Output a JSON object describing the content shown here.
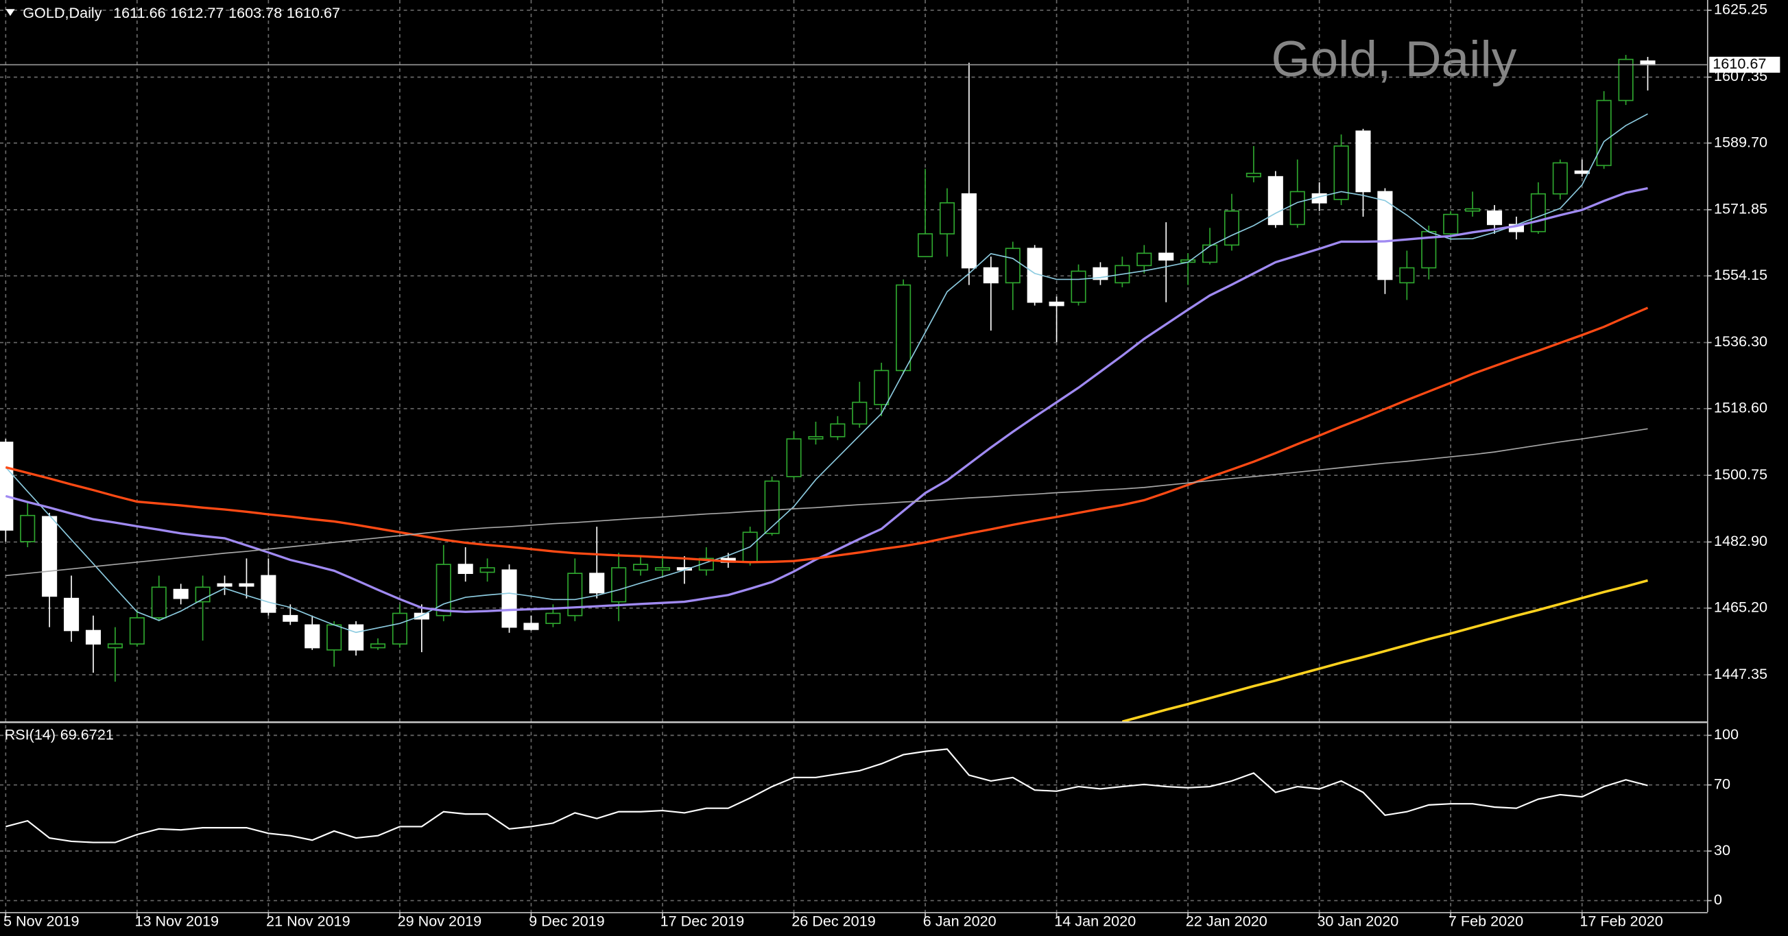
{
  "chart_data": [
    {
      "type": "candlestick",
      "title": "Gold, Daily",
      "symbol": "GOLD,Daily",
      "categories": [
        "5 Nov 2019",
        null,
        null,
        null,
        null,
        null,
        "13 Nov 2019",
        null,
        null,
        null,
        null,
        null,
        "21 Nov 2019",
        null,
        null,
        null,
        null,
        null,
        "29 Nov 2019",
        null,
        null,
        null,
        null,
        null,
        "9 Dec 2019",
        null,
        null,
        null,
        null,
        null,
        "17 Dec 2019",
        null,
        null,
        null,
        null,
        null,
        "26 Dec 2019",
        null,
        null,
        null,
        null,
        null,
        "6 Jan 2020",
        null,
        null,
        null,
        null,
        null,
        "14 Jan 2020",
        null,
        null,
        null,
        null,
        null,
        "22 Jan 2020",
        null,
        null,
        null,
        null,
        null,
        "30 Jan 2020",
        null,
        null,
        null,
        null,
        null,
        "7 Feb 2020",
        null,
        null,
        null,
        null,
        null,
        "17 Feb 2020",
        null,
        null,
        null
      ],
      "open": [
        1509.6,
        1483.0,
        1489.7,
        1467.8,
        1459.2,
        1454.6,
        1455.6,
        1462.6,
        1470.2,
        1466.9,
        1471.7,
        1471.7,
        1473.9,
        1463.2,
        1460.7,
        1454.0,
        1460.7,
        1454.6,
        1455.6,
        1463.8,
        1463.2,
        1476.9,
        1474.8,
        1475.4,
        1461.1,
        1461.1,
        1463.2,
        1474.5,
        1466.9,
        1475.4,
        1475.4,
        1476.0,
        1475.4,
        1478.5,
        1477.5,
        1485.2,
        1500.4,
        1510.5,
        1511.1,
        1514.5,
        1519.7,
        1528.8,
        1559.3,
        1565.4,
        1576.1,
        1556.3,
        1552.3,
        1561.5,
        1547.1,
        1547.1,
        1556.3,
        1552.3,
        1556.9,
        1560.2,
        1557.8,
        1557.8,
        1562.4,
        1580.7,
        1580.7,
        1567.9,
        1576.1,
        1574.6,
        1592.9,
        1576.7,
        1552.3,
        1556.3,
        1565.4,
        1571.5,
        1571.5,
        1567.9,
        1566.0,
        1576.1,
        1582.2,
        1583.7,
        1601.1,
        1611.66
      ],
      "high": [
        1510.5,
        1493.7,
        1490.7,
        1473.9,
        1463.2,
        1460.1,
        1464.7,
        1473.9,
        1471.7,
        1473.9,
        1473.9,
        1478.5,
        1478.5,
        1466.2,
        1463.2,
        1461.7,
        1461.7,
        1457.1,
        1466.2,
        1466.2,
        1482.1,
        1481.5,
        1478.5,
        1476.9,
        1463.2,
        1466.2,
        1478.5,
        1487.0,
        1480.0,
        1479.1,
        1478.5,
        1479.1,
        1481.5,
        1480.0,
        1487.0,
        1500.4,
        1512.6,
        1515.1,
        1516.6,
        1525.8,
        1530.9,
        1553.2,
        1582.8,
        1577.6,
        1611.2,
        1559.3,
        1563.3,
        1562.4,
        1548.6,
        1557.2,
        1557.8,
        1559.3,
        1562.4,
        1568.5,
        1560.2,
        1567.0,
        1576.1,
        1588.9,
        1582.2,
        1585.3,
        1579.2,
        1592.0,
        1593.5,
        1577.6,
        1560.9,
        1567.6,
        1571.5,
        1576.7,
        1573.1,
        1570.0,
        1579.2,
        1585.3,
        1585.3,
        1603.6,
        1613.3,
        1612.77
      ],
      "low": [
        1483.0,
        1481.5,
        1460.1,
        1456.2,
        1447.9,
        1445.5,
        1454.9,
        1461.7,
        1466.2,
        1456.5,
        1468.7,
        1467.8,
        1463.2,
        1460.7,
        1454.0,
        1449.5,
        1452.5,
        1454.0,
        1454.6,
        1453.4,
        1461.7,
        1472.3,
        1472.3,
        1458.6,
        1459.2,
        1460.1,
        1461.7,
        1467.8,
        1461.7,
        1473.9,
        1473.9,
        1471.7,
        1473.9,
        1476.0,
        1476.6,
        1484.6,
        1499.8,
        1509.0,
        1510.2,
        1513.5,
        1516.6,
        1527.9,
        1559.3,
        1559.3,
        1551.7,
        1539.5,
        1545.0,
        1546.2,
        1536.4,
        1546.2,
        1551.7,
        1551.1,
        1554.8,
        1547.1,
        1551.7,
        1557.2,
        1560.9,
        1579.2,
        1567.0,
        1567.0,
        1571.5,
        1573.1,
        1570.0,
        1549.3,
        1547.7,
        1553.2,
        1563.9,
        1570.0,
        1565.4,
        1563.9,
        1565.4,
        1574.6,
        1580.7,
        1582.8,
        1599.9,
        1603.78
      ],
      "close": [
        1486.1,
        1490.0,
        1468.4,
        1459.2,
        1455.6,
        1455.6,
        1462.6,
        1470.8,
        1467.8,
        1470.8,
        1471.1,
        1471.1,
        1464.1,
        1461.7,
        1454.6,
        1460.7,
        1454.0,
        1455.6,
        1463.8,
        1462.3,
        1476.9,
        1474.5,
        1476.0,
        1460.1,
        1459.5,
        1463.8,
        1474.5,
        1469.3,
        1476.0,
        1476.9,
        1476.0,
        1475.4,
        1478.5,
        1477.5,
        1485.5,
        1499.2,
        1510.5,
        1511.1,
        1514.5,
        1520.3,
        1528.8,
        1551.7,
        1565.4,
        1573.7,
        1556.3,
        1552.3,
        1561.5,
        1547.1,
        1546.2,
        1555.4,
        1553.2,
        1556.9,
        1560.2,
        1558.4,
        1558.4,
        1562.4,
        1571.5,
        1581.6,
        1567.9,
        1576.7,
        1573.7,
        1588.9,
        1576.7,
        1553.2,
        1556.3,
        1566.0,
        1570.6,
        1572.1,
        1567.9,
        1566.0,
        1576.1,
        1584.4,
        1581.6,
        1601.1,
        1612.1,
        1610.67
      ],
      "up_color": "#2fa82f",
      "down_color": "#ffffff",
      "series": [
        {
          "color": "#8ccbe0",
          "values": [
            1502.9,
            1496.4,
            1490.0,
            1483.5,
            1477.1,
            1470.6,
            1464.2,
            1461.9,
            1464.4,
            1467.6,
            1470.5,
            1468.6,
            1466.8,
            1465.4,
            1463.0,
            1460.7,
            1458.7,
            1459.9,
            1461.1,
            1463.2,
            1466.3,
            1468.1,
            1468.7,
            1469.2,
            1468.4,
            1467.5,
            1467.5,
            1468.6,
            1470.1,
            1471.9,
            1473.6,
            1475.4,
            1477.4,
            1479.3,
            1481.6,
            1487.0,
            1492.4,
            1499.6,
            1505.5,
            1511.4,
            1517.3,
            1528.2,
            1539.0,
            1549.9,
            1554.8,
            1560.1,
            1558.8,
            1554.8,
            1553.2,
            1553.2,
            1553.7,
            1554.6,
            1555.5,
            1556.6,
            1557.8,
            1562.1,
            1565.0,
            1567.6,
            1570.9,
            1573.8,
            1575.3,
            1576.7,
            1575.7,
            1574.3,
            1570.4,
            1565.9,
            1564.0,
            1564.1,
            1565.8,
            1567.8,
            1570.0,
            1572.2,
            1578.5,
            1590.1,
            1594.4,
            1597.5
          ]
        },
        {
          "color": "#a08af2",
          "values": [
            1495.2,
            1493.6,
            1492.1,
            1490.5,
            1489.0,
            1488.1,
            1487.1,
            1486.2,
            1485.2,
            1484.5,
            1483.9,
            1482.0,
            1480.1,
            1478.1,
            1476.7,
            1475.2,
            1472.7,
            1470.1,
            1467.6,
            1465.3,
            1464.5,
            1464.2,
            1464.4,
            1464.7,
            1464.9,
            1465.1,
            1465.4,
            1465.7,
            1466.0,
            1466.3,
            1466.6,
            1466.9,
            1467.8,
            1468.7,
            1470.4,
            1472.2,
            1475.0,
            1478.2,
            1480.9,
            1483.7,
            1486.4,
            1491.2,
            1496.0,
            1499.4,
            1503.8,
            1508.2,
            1512.4,
            1516.4,
            1520.3,
            1524.2,
            1528.5,
            1532.8,
            1537.3,
            1541.2,
            1545.1,
            1548.9,
            1551.8,
            1554.8,
            1557.8,
            1559.6,
            1561.4,
            1563.3,
            1563.3,
            1563.4,
            1563.9,
            1564.4,
            1564.8,
            1565.8,
            1566.6,
            1567.5,
            1568.9,
            1570.4,
            1571.8,
            1574.2,
            1576.4,
            1577.6
          ]
        },
        {
          "color": "#ff4a14",
          "values": [
            1502.9,
            1501.4,
            1499.9,
            1498.3,
            1496.8,
            1495.2,
            1493.7,
            1493.2,
            1492.7,
            1492.1,
            1491.6,
            1491.0,
            1490.3,
            1489.7,
            1489.0,
            1488.4,
            1487.5,
            1486.5,
            1485.5,
            1484.5,
            1483.5,
            1482.7,
            1482.1,
            1481.6,
            1481.0,
            1480.4,
            1479.9,
            1479.6,
            1479.3,
            1479.1,
            1478.8,
            1478.5,
            1478.1,
            1477.7,
            1477.5,
            1477.6,
            1477.8,
            1478.5,
            1479.3,
            1480.1,
            1481.0,
            1481.8,
            1482.8,
            1484.0,
            1485.2,
            1486.3,
            1487.5,
            1488.6,
            1489.6,
            1490.7,
            1491.8,
            1492.8,
            1494.1,
            1496.1,
            1498.2,
            1500.3,
            1502.3,
            1504.4,
            1506.7,
            1509.1,
            1511.4,
            1513.8,
            1516.1,
            1518.5,
            1520.9,
            1523.2,
            1525.5,
            1527.9,
            1530.0,
            1532.1,
            1534.1,
            1536.2,
            1538.3,
            1540.5,
            1543.1,
            1545.6
          ]
        },
        {
          "color": "#a8a8a8",
          "values": [
            1473.9,
            1474.5,
            1475.1,
            1475.7,
            1476.3,
            1476.9,
            1477.5,
            1478.1,
            1478.7,
            1479.3,
            1479.9,
            1480.4,
            1481.0,
            1481.6,
            1482.2,
            1482.8,
            1483.4,
            1484.0,
            1484.6,
            1485.2,
            1485.8,
            1486.3,
            1486.7,
            1487.0,
            1487.4,
            1487.8,
            1488.1,
            1488.5,
            1488.9,
            1489.3,
            1489.6,
            1490.0,
            1490.4,
            1490.7,
            1491.1,
            1491.4,
            1491.8,
            1492.1,
            1492.5,
            1492.9,
            1493.2,
            1493.6,
            1493.9,
            1494.3,
            1494.7,
            1495.0,
            1495.4,
            1495.7,
            1496.1,
            1496.4,
            1496.8,
            1497.1,
            1497.5,
            1498.1,
            1498.7,
            1499.3,
            1499.9,
            1500.4,
            1501.0,
            1501.6,
            1502.2,
            1502.8,
            1503.4,
            1504.0,
            1504.5,
            1505.1,
            1505.7,
            1506.3,
            1507.0,
            1507.9,
            1508.8,
            1509.7,
            1510.5,
            1511.4,
            1512.3,
            1513.2
          ]
        },
        {
          "color": "#ffd21e",
          "values": [
            null,
            null,
            null,
            null,
            null,
            null,
            null,
            null,
            null,
            null,
            null,
            null,
            null,
            null,
            null,
            null,
            null,
            null,
            null,
            null,
            null,
            null,
            null,
            null,
            null,
            null,
            null,
            null,
            null,
            null,
            null,
            null,
            null,
            null,
            null,
            null,
            null,
            null,
            null,
            null,
            null,
            null,
            null,
            null,
            null,
            null,
            null,
            null,
            null,
            null,
            null,
            1434.8,
            1436.4,
            1438.0,
            1439.5,
            1441.1,
            1442.7,
            1444.3,
            1445.8,
            1447.4,
            1449.0,
            1450.6,
            1452.1,
            1453.7,
            1455.3,
            1456.9,
            1458.4,
            1460.0,
            1461.6,
            1463.2,
            1464.7,
            1466.3,
            1467.9,
            1469.5,
            1471.0,
            1472.6
          ]
        }
      ],
      "ylim": [
        1434.8,
        1628.0
      ],
      "yticks": [
        1625.25,
        1607.35,
        {
          "value": 1589.7,
          "label": "1589.70"
        },
        1571.85,
        1554.15,
        {
          "value": 1536.3,
          "label": "1536.30"
        },
        {
          "value": 1518.6,
          "label": "1518.60"
        },
        1500.75,
        {
          "value": 1482.9,
          "label": "1482.90"
        },
        {
          "value": 1465.2,
          "label": "1465.20"
        },
        1447.35
      ],
      "grid": true
    },
    {
      "type": "line",
      "title": "RSI(14)",
      "color": "#ffffff",
      "values": [
        44.8,
        48.3,
        37.9,
        35.9,
        35.2,
        35.2,
        40.0,
        43.4,
        42.8,
        44.1,
        44.1,
        44.1,
        40.7,
        39.3,
        36.6,
        42.1,
        37.9,
        39.3,
        44.8,
        44.8,
        53.8,
        52.4,
        52.4,
        43.4,
        44.8,
        46.9,
        53.1,
        49.7,
        53.8,
        53.8,
        54.5,
        53.1,
        55.9,
        55.9,
        62.1,
        69.0,
        74.5,
        74.5,
        76.6,
        78.6,
        82.8,
        88.3,
        90.3,
        91.7,
        75.9,
        72.4,
        74.5,
        66.9,
        66.2,
        69.0,
        67.6,
        69.0,
        70.3,
        69.0,
        68.3,
        69.0,
        72.4,
        77.2,
        65.5,
        69.0,
        67.6,
        72.4,
        65.5,
        51.7,
        53.8,
        57.9,
        58.6,
        58.6,
        56.6,
        55.9,
        61.4,
        64.1,
        62.8,
        69.0,
        73.1,
        69.6721
      ],
      "ylim": [
        -6.9,
        106.2
      ],
      "yticks": [
        100,
        70,
        30,
        0
      ],
      "grid": true
    }
  ]
}
